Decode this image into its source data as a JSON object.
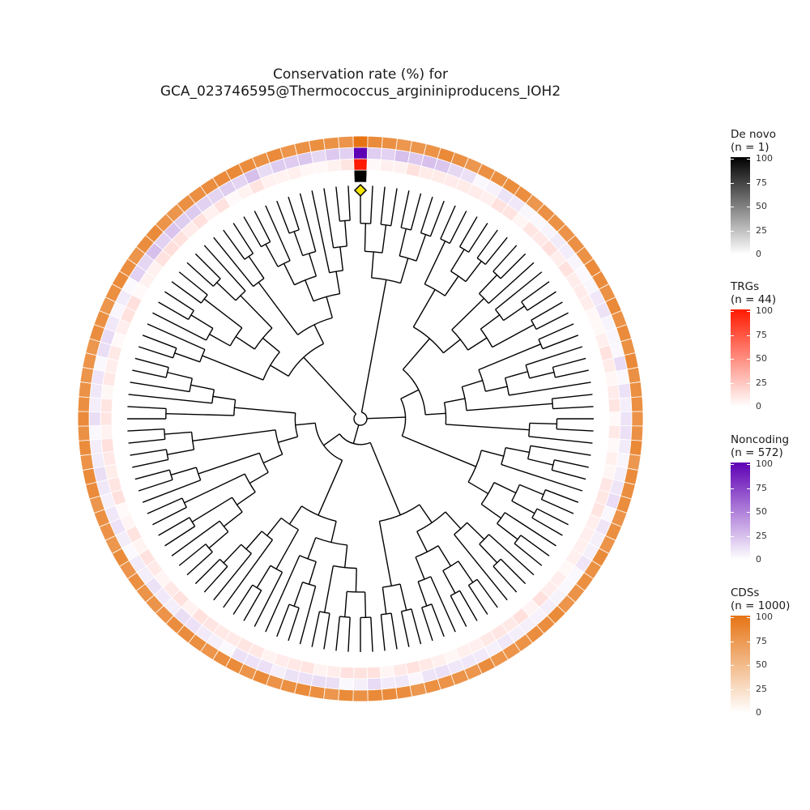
{
  "title": {
    "line1": "Conservation rate (%) for",
    "line2": "GCA_023746595@Thermococcus_argininiproducens_IOH2"
  },
  "legends": [
    {
      "title": "De novo",
      "count": "(n = 1)",
      "color_low": "#ffffff",
      "color_high": "#000000",
      "ticks": [
        "100",
        "75",
        "50",
        "25",
        "0"
      ]
    },
    {
      "title": "TRGs",
      "count": "(n = 44)",
      "color_low": "#ffffff",
      "color_high": "#ff1a00",
      "ticks": [
        "100",
        "75",
        "50",
        "25",
        "0"
      ]
    },
    {
      "title": "Noncoding",
      "count": "(n = 572)",
      "color_low": "#ffffff",
      "color_high": "#5e00b4",
      "ticks": [
        "100",
        "75",
        "50",
        "25",
        "0"
      ]
    },
    {
      "title": "CDSs",
      "count": "(n = 1000)",
      "color_low": "#ffffff",
      "color_high": "#e67414",
      "ticks": [
        "100",
        "75",
        "50",
        "25",
        "0"
      ]
    }
  ],
  "chart_data": {
    "type": "heatmap",
    "layout": "circular phylogenetic tree with concentric heatmap rings",
    "scale": [
      0,
      100
    ],
    "leaf_count": 120,
    "highlighted_leaf": {
      "index": 0,
      "marker": "yellow diamond",
      "marker_color": "#f5e400"
    },
    "rings": [
      {
        "name": "De novo",
        "order": "innermost",
        "typical_value": 0,
        "highlighted_value": 100
      },
      {
        "name": "TRGs",
        "order": 2,
        "typical_value": 8,
        "highlighted_value": 100
      },
      {
        "name": "Noncoding",
        "order": 3,
        "typical_value": 8,
        "highlighted_value": 100
      },
      {
        "name": "CDSs",
        "order": "outermost",
        "typical_value": 80,
        "highlighted_value": 100
      }
    ]
  }
}
